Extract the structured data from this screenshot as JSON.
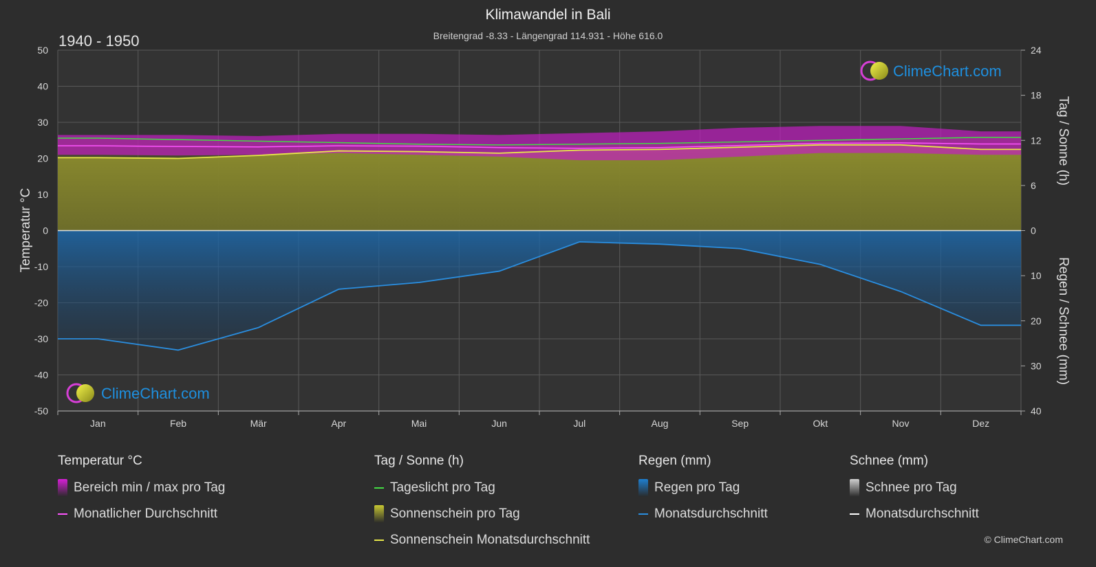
{
  "header": {
    "title": "Klimawandel in Bali",
    "subtitle": "Breitengrad -8.33 - Längengrad 114.931 - Höhe 616.0",
    "period": "1940 - 1950"
  },
  "brand": {
    "name": "ClimeChart.com",
    "copyright": "© ClimeChart.com",
    "color": "#1e90e0"
  },
  "axes": {
    "left_label": "Temperatur °C",
    "right_top_label": "Tag / Sonne (h)",
    "right_bottom_label": "Regen / Schnee (mm)"
  },
  "chart_data": {
    "type": "area",
    "categories": [
      "Jan",
      "Feb",
      "Mär",
      "Apr",
      "Mai",
      "Jun",
      "Jul",
      "Aug",
      "Sep",
      "Okt",
      "Nov",
      "Dez"
    ],
    "temperature_axis": {
      "ylim": [
        -50,
        50
      ],
      "ticks": [
        50,
        40,
        30,
        20,
        10,
        0,
        -10,
        -20,
        -30,
        -40,
        -50
      ]
    },
    "sun_axis": {
      "ylim": [
        0,
        24
      ],
      "ticks": [
        24,
        18,
        12,
        6,
        0
      ]
    },
    "rain_axis": {
      "ylim": [
        0,
        40
      ],
      "ticks": [
        0,
        10,
        20,
        30,
        40
      ]
    },
    "series": [
      {
        "name": "Tageslicht pro Tag",
        "unit": "h",
        "color": "#44dd44",
        "values": [
          12.3,
          12.1,
          11.9,
          11.7,
          11.5,
          11.4,
          11.5,
          11.6,
          11.8,
          12.0,
          12.2,
          12.4
        ]
      },
      {
        "name": "Sonnenschein Monatsdurchschnitt",
        "unit": "h",
        "color": "#e8e84a",
        "values": [
          9.7,
          9.6,
          10.0,
          10.6,
          10.5,
          10.3,
          10.7,
          10.8,
          11.1,
          11.4,
          11.4,
          10.8
        ]
      },
      {
        "name": "Monatlicher Durchschnitt",
        "unit": "°C",
        "color": "#ff55ff",
        "values": [
          23.5,
          23.3,
          23.2,
          23.5,
          23.4,
          23.0,
          22.8,
          23.0,
          23.6,
          24.2,
          24.3,
          24.0
        ]
      },
      {
        "name": "Temperatur max",
        "unit": "°C",
        "values": [
          26.5,
          26.5,
          26.2,
          26.8,
          26.8,
          26.5,
          27.0,
          27.5,
          28.5,
          29.0,
          29.0,
          27.5
        ]
      },
      {
        "name": "Temperatur min",
        "unit": "°C",
        "values": [
          21.0,
          20.8,
          21.0,
          21.5,
          21.0,
          20.5,
          19.5,
          19.5,
          20.5,
          21.5,
          21.5,
          21.0
        ]
      },
      {
        "name": "Monatsdurchschnitt",
        "unit": "mm",
        "color": "#2a8ee0",
        "values": [
          24.0,
          26.5,
          21.5,
          13.0,
          11.5,
          9.0,
          2.5,
          3.0,
          4.0,
          7.5,
          13.5,
          21.0
        ]
      }
    ]
  },
  "legend": {
    "groups": [
      {
        "title": "Temperatur °C",
        "items": [
          {
            "label": "Bereich min / max pro Tag",
            "kind": "box",
            "color": "#d61fd6"
          },
          {
            "label": "Monatlicher Durchschnitt",
            "kind": "line",
            "color": "#ff55ff"
          }
        ]
      },
      {
        "title": "Tag / Sonne (h)",
        "items": [
          {
            "label": "Tageslicht pro Tag",
            "kind": "line",
            "color": "#44dd44"
          },
          {
            "label": "Sonnenschein pro Tag",
            "kind": "box",
            "color": "#c8c832"
          },
          {
            "label": "Sonnenschein Monatsdurchschnitt",
            "kind": "line",
            "color": "#e8e84a"
          }
        ]
      },
      {
        "title": "Regen (mm)",
        "items": [
          {
            "label": "Regen pro Tag",
            "kind": "box",
            "color": "#1e7fd0"
          },
          {
            "label": "Monatsdurchschnitt",
            "kind": "line",
            "color": "#2a8ee0"
          }
        ]
      },
      {
        "title": "Schnee (mm)",
        "items": [
          {
            "label": "Schnee pro Tag",
            "kind": "box",
            "color": "#cfcfcf"
          },
          {
            "label": "Monatsdurchschnitt",
            "kind": "line",
            "color": "#ffffff"
          }
        ]
      }
    ]
  }
}
